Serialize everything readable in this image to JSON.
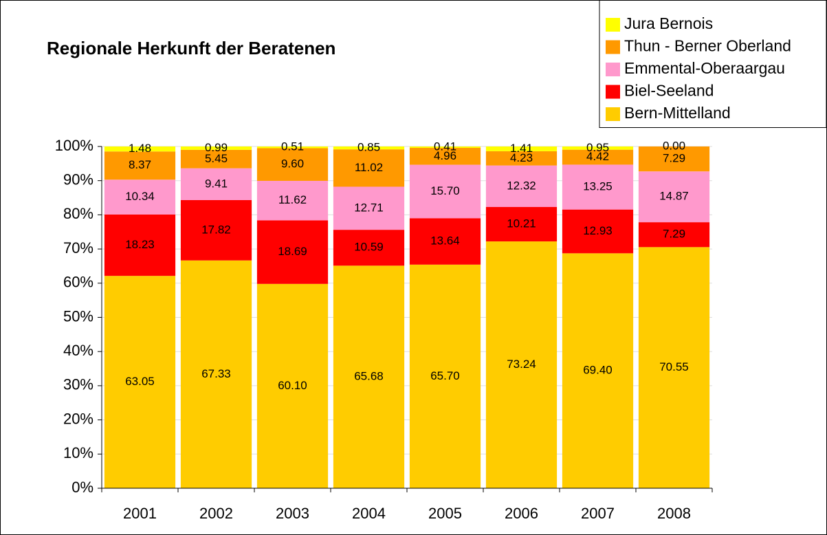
{
  "chart_data": {
    "type": "bar",
    "stacking": "percent",
    "title": "Regionale Herkunft der Beratenen",
    "categories": [
      "2001",
      "2002",
      "2003",
      "2004",
      "2005",
      "2006",
      "2007",
      "2008"
    ],
    "series": [
      {
        "name": "Bern-Mittelland",
        "color": "#FFCC00",
        "values": [
          63.05,
          67.33,
          60.1,
          65.68,
          65.7,
          73.24,
          69.4,
          70.55
        ],
        "value_labels": [
          "63.05",
          "67.33",
          "60.10",
          "65.68",
          "65.70",
          "73.24",
          "69.40",
          "70.55"
        ]
      },
      {
        "name": "Biel-Seeland",
        "color": "#FF0000",
        "values": [
          18.23,
          17.82,
          18.69,
          10.59,
          13.64,
          10.21,
          12.93,
          7.29
        ],
        "value_labels": [
          "18.23",
          "17.82",
          "18.69",
          "10.59",
          "13.64",
          "10.21",
          "12.93",
          "7.29"
        ]
      },
      {
        "name": "Emmental-Oberaargau",
        "color": "#FF99CC",
        "values": [
          10.34,
          9.41,
          11.62,
          12.71,
          15.7,
          12.32,
          13.25,
          14.87
        ],
        "value_labels": [
          "10.34",
          "9.41",
          "11.62",
          "12.71",
          "15.70",
          "12.32",
          "13.25",
          "14.87"
        ]
      },
      {
        "name": "Thun - Berner Oberland",
        "color": "#FF9900",
        "values": [
          8.37,
          5.45,
          9.6,
          11.02,
          4.96,
          4.23,
          4.42,
          7.29
        ],
        "value_labels": [
          "8.37",
          "5.45",
          "9.60",
          "11.02",
          "4.96",
          "4.23",
          "4.42",
          "7.29"
        ]
      },
      {
        "name": "Jura Bernois",
        "color": "#FFFF00",
        "values": [
          1.48,
          0.99,
          0.51,
          0.85,
          0.41,
          1.41,
          0.95,
          0.0
        ],
        "value_labels": [
          "1.48",
          "0.99",
          "0.51",
          "0.85",
          "0.41",
          "1.41",
          "0.95",
          "0.00"
        ]
      }
    ],
    "ylim": [
      0,
      100
    ],
    "yticks": [
      {
        "value": 0,
        "label": "0%"
      },
      {
        "value": 10,
        "label": "10%"
      },
      {
        "value": 20,
        "label": "20%"
      },
      {
        "value": 30,
        "label": "30%"
      },
      {
        "value": 40,
        "label": "40%"
      },
      {
        "value": 50,
        "label": "50%"
      },
      {
        "value": 60,
        "label": "60%"
      },
      {
        "value": 70,
        "label": "70%"
      },
      {
        "value": 80,
        "label": "80%"
      },
      {
        "value": 90,
        "label": "90%"
      },
      {
        "value": 100,
        "label": "100%"
      }
    ],
    "grid": true,
    "legend": "top-right"
  }
}
